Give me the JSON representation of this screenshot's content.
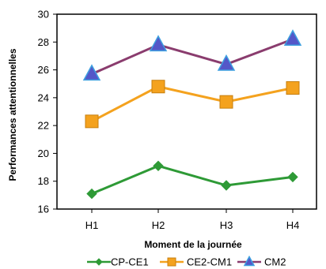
{
  "chart_data": {
    "type": "line",
    "title": "",
    "xlabel": "Moment de la journée",
    "ylabel": "Performances attentionnelles",
    "categories": [
      "H1",
      "H2",
      "H3",
      "H4"
    ],
    "ylim": [
      16,
      30
    ],
    "yticks": [
      16,
      18,
      20,
      22,
      24,
      26,
      28,
      30
    ],
    "grid": false,
    "legend_position": "bottom",
    "series": [
      {
        "name": "CP-CE1",
        "values": [
          17.1,
          19.1,
          17.7,
          18.3
        ],
        "color": "#2e9a36",
        "marker": "diamond"
      },
      {
        "name": "CE2-CM1",
        "values": [
          22.3,
          24.8,
          23.7,
          24.7
        ],
        "color": "#f4a21e",
        "marker": "square"
      },
      {
        "name": "CM2",
        "values": [
          25.7,
          27.8,
          26.4,
          28.2
        ],
        "color": "#8a3c6e",
        "marker": "triangle",
        "marker_fill": "#5457c8"
      }
    ]
  }
}
